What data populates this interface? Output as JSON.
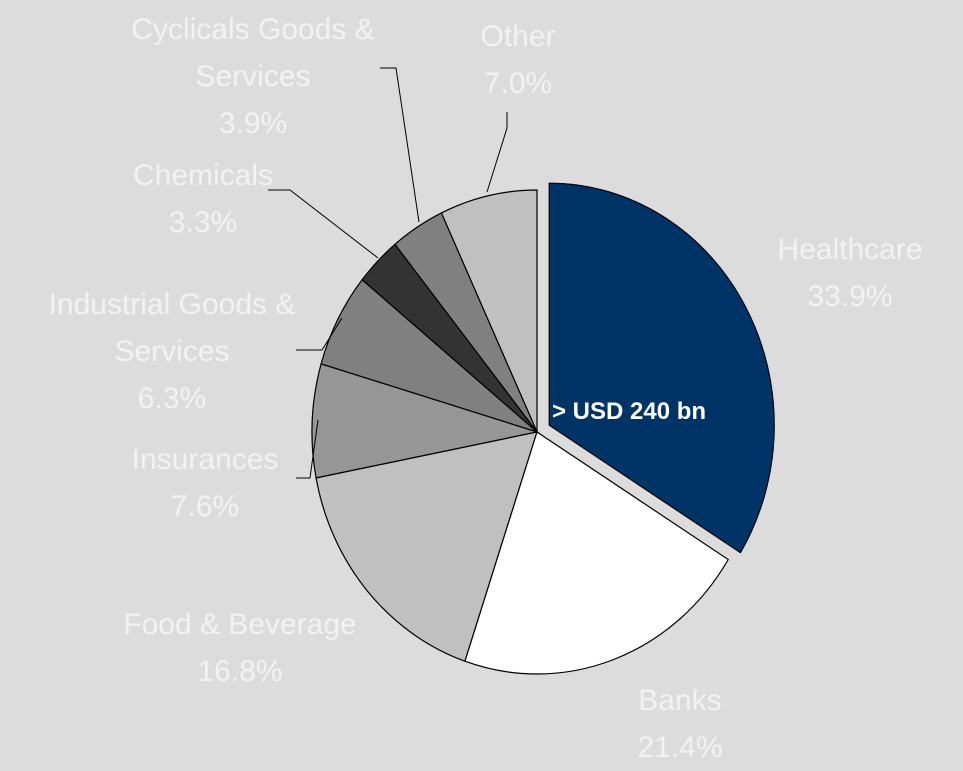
{
  "chart_data": {
    "type": "pie",
    "categories": [
      "Healthcare",
      "Banks",
      "Food & Beverage",
      "Insurances",
      "Industrial Goods & Services",
      "Chemicals",
      "Cyclicals Goods & Services",
      "Other"
    ],
    "values": [
      33.9,
      21.4,
      16.8,
      7.6,
      6.3,
      3.3,
      3.9,
      7.0
    ],
    "value_labels": [
      "33.9%",
      "21.4%",
      "16.8%",
      "7.6%",
      "6.3%",
      "3.3%",
      "3.9%",
      "7.0%"
    ],
    "colors": [
      "#003366",
      "#ffffff",
      "#c0c0c0",
      "#969696",
      "#808080",
      "#333333",
      "#808080",
      "#c0c0c0"
    ],
    "exploded": [
      0
    ],
    "annotation": "> USD 240 bn"
  }
}
